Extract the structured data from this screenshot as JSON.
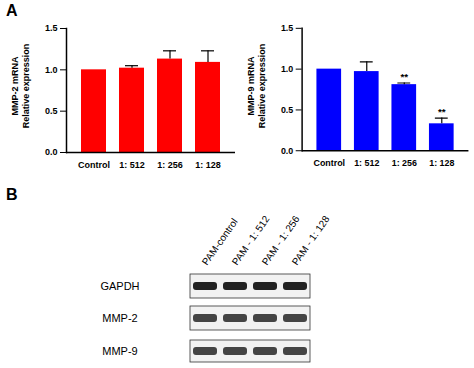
{
  "panel_labels": [
    "A",
    "B"
  ],
  "chart_data": [
    {
      "type": "bar",
      "y_label": [
        "MMP-2 mRNA",
        "Relative expression"
      ],
      "categories": [
        "Control",
        "1: 512",
        "1: 256",
        "1: 128"
      ],
      "values": [
        1.0,
        1.02,
        1.13,
        1.09
      ],
      "errors": [
        0,
        0.03,
        0.1,
        0.14
      ],
      "color": "#ff0000",
      "ylim": [
        0,
        1.5
      ],
      "yticks": [
        {
          "value": 0,
          "label": "0.0"
        },
        {
          "value": 0.5,
          "label": "0.5"
        },
        {
          "value": 1,
          "label": "1.0"
        },
        {
          "value": 1.5,
          "label": "1.5"
        }
      ],
      "annotations": []
    },
    {
      "type": "bar",
      "y_label": [
        "MMP-9 mRNA",
        "Relative expression"
      ],
      "categories": [
        "Control",
        "1: 512",
        "1: 256",
        "1: 128"
      ],
      "values": [
        1.0,
        0.97,
        0.81,
        0.33
      ],
      "errors": [
        0,
        0.12,
        0.02,
        0.07
      ],
      "color": "#0000ff",
      "ylim": [
        0,
        1.5
      ],
      "yticks": [
        {
          "value": 0,
          "label": "0.0"
        },
        {
          "value": 0.5,
          "label": "0.5"
        },
        {
          "value": 1,
          "label": "1.0"
        },
        {
          "value": 1.5,
          "label": "1.5"
        }
      ],
      "annotations": [
        {
          "category": "1: 256",
          "text": "**"
        },
        {
          "category": "1: 128",
          "text": "**"
        }
      ]
    }
  ],
  "blot": {
    "lanes": [
      "PAM-control",
      "PAM - 1: 512",
      "PAM - 1: 256",
      "PAM - 1: 128"
    ],
    "rows": [
      "GAPDH",
      "MMP-2",
      "MMP-9"
    ]
  }
}
